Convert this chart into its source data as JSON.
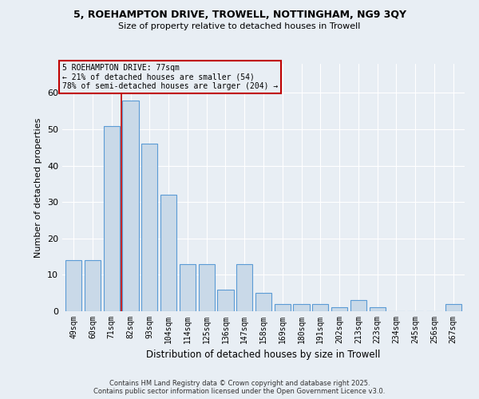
{
  "title1": "5, ROEHAMPTON DRIVE, TROWELL, NOTTINGHAM, NG9 3QY",
  "title2": "Size of property relative to detached houses in Trowell",
  "xlabel": "Distribution of detached houses by size in Trowell",
  "ylabel": "Number of detached properties",
  "categories": [
    "49sqm",
    "60sqm",
    "71sqm",
    "82sqm",
    "93sqm",
    "104sqm",
    "114sqm",
    "125sqm",
    "136sqm",
    "147sqm",
    "158sqm",
    "169sqm",
    "180sqm",
    "191sqm",
    "202sqm",
    "213sqm",
    "223sqm",
    "234sqm",
    "245sqm",
    "256sqm",
    "267sqm"
  ],
  "values": [
    14,
    14,
    51,
    58,
    46,
    32,
    13,
    13,
    6,
    13,
    5,
    2,
    2,
    2,
    1,
    3,
    1,
    0,
    0,
    0,
    2
  ],
  "bar_color": "#c9d9e8",
  "bar_edge_color": "#5b9bd5",
  "bg_color": "#e8eef4",
  "grid_color": "#ffffff",
  "vline_x": 2.5,
  "vline_color": "#c00000",
  "annotation_line1": "5 ROEHAMPTON DRIVE: 77sqm",
  "annotation_line2": "← 21% of detached houses are smaller (54)",
  "annotation_line3": "78% of semi-detached houses are larger (204) →",
  "annotation_box_color": "#c00000",
  "ylim": [
    0,
    68
  ],
  "yticks": [
    0,
    10,
    20,
    30,
    40,
    50,
    60
  ],
  "footer": "Contains HM Land Registry data © Crown copyright and database right 2025.\nContains public sector information licensed under the Open Government Licence v3.0."
}
